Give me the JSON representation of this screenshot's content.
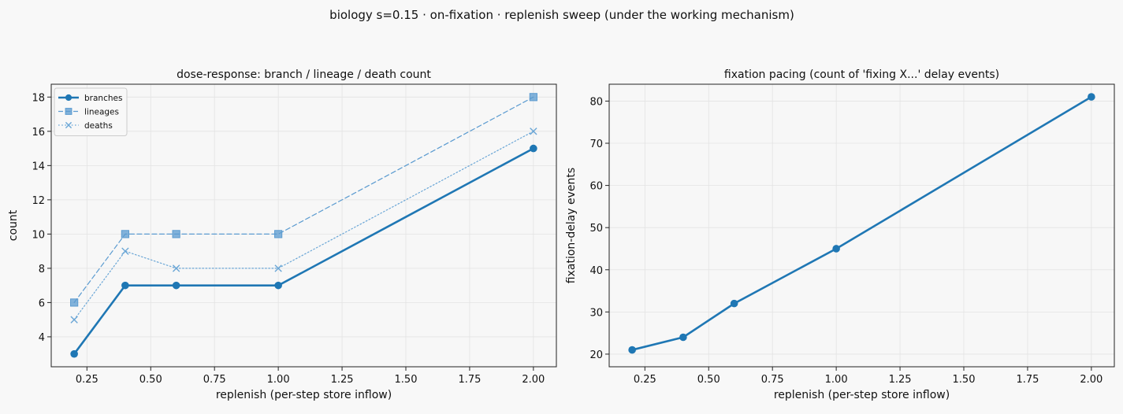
{
  "suptitle": "biology s=0.15 · on-fixation · replenish sweep (under the working mechanism)",
  "chart_data": [
    {
      "type": "line",
      "title": "dose-response: branch / lineage / death count",
      "xlabel": "replenish (per-step store inflow)",
      "ylabel": "count",
      "xlim": [
        0.11,
        2.09
      ],
      "ylim": [
        2.25,
        18.75
      ],
      "xticks": [
        0.25,
        0.5,
        0.75,
        1.0,
        1.25,
        1.5,
        1.75,
        2.0
      ],
      "xtick_labels": [
        "0.25",
        "0.50",
        "0.75",
        "1.00",
        "1.25",
        "1.50",
        "1.75",
        "2.00"
      ],
      "yticks": [
        4,
        6,
        8,
        10,
        12,
        14,
        16,
        18
      ],
      "ytick_labels": [
        "4",
        "6",
        "8",
        "10",
        "12",
        "14",
        "16",
        "18"
      ],
      "grid": true,
      "legend": "top-left",
      "x": [
        0.2,
        0.4,
        0.6,
        1.0,
        2.0
      ],
      "series": [
        {
          "name": "branches",
          "values": [
            3,
            7,
            7,
            7,
            15
          ],
          "color": "#1f77b4",
          "style": "solid",
          "marker": "circle"
        },
        {
          "name": "lineages",
          "values": [
            6,
            10,
            10,
            10,
            18
          ],
          "color": "#5b9bd0",
          "style": "dashed",
          "marker": "square"
        },
        {
          "name": "deaths",
          "values": [
            5,
            9,
            8,
            8,
            16
          ],
          "color": "#6aa6d6",
          "style": "dotted",
          "marker": "x"
        }
      ]
    },
    {
      "type": "line",
      "title": "fixation pacing (count of 'fixing X...' delay events)",
      "xlabel": "replenish (per-step store inflow)",
      "ylabel": "fixation-delay events",
      "xlim": [
        0.11,
        2.09
      ],
      "ylim": [
        17,
        84
      ],
      "xticks": [
        0.25,
        0.5,
        0.75,
        1.0,
        1.25,
        1.5,
        1.75,
        2.0
      ],
      "xtick_labels": [
        "0.25",
        "0.50",
        "0.75",
        "1.00",
        "1.25",
        "1.50",
        "1.75",
        "2.00"
      ],
      "yticks": [
        20,
        30,
        40,
        50,
        60,
        70,
        80
      ],
      "ytick_labels": [
        "20",
        "30",
        "40",
        "50",
        "60",
        "70",
        "80"
      ],
      "grid": true,
      "x": [
        0.2,
        0.4,
        0.6,
        1.0,
        2.0
      ],
      "series": [
        {
          "values": [
            21,
            24,
            32,
            45,
            81
          ],
          "color": "#1f77b4",
          "style": "solid",
          "marker": "circle"
        }
      ]
    }
  ]
}
